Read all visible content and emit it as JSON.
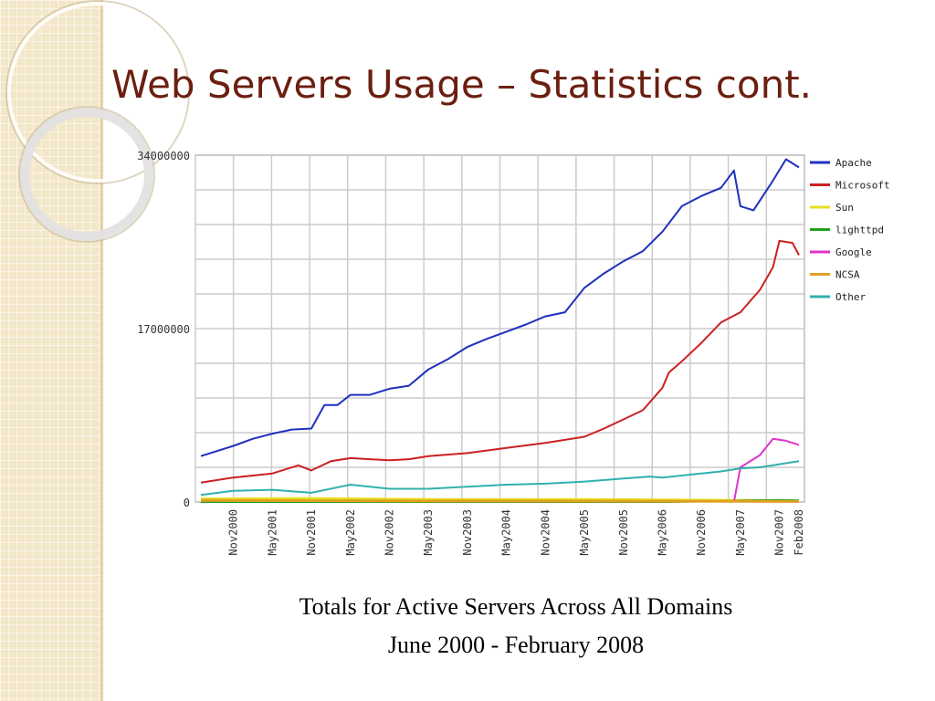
{
  "slide": {
    "title": "Web Servers Usage – Statistics cont."
  },
  "caption": {
    "line1": "Totals for Active Servers Across All Domains",
    "line2": "June 2000 - February 2008"
  },
  "colors": {
    "title": "#6b1f10",
    "plot_background": "#ffffff",
    "gridlines": "#cccccc",
    "strip_background": "#f3e7c9"
  },
  "chart_data": {
    "type": "line",
    "title": "",
    "xlabel": "",
    "ylabel": "",
    "ylim": [
      0,
      34000000
    ],
    "y_ticks": [
      "0",
      "17000000",
      "34000000"
    ],
    "x_tick_labels": [
      "Nov2000",
      "May2001",
      "Nov2001",
      "May2002",
      "Nov2002",
      "May2003",
      "Nov2003",
      "May2004",
      "Nov2004",
      "May2005",
      "Nov2005",
      "May2006",
      "Nov2006",
      "May2007",
      "Nov2007",
      "Feb2008"
    ],
    "grid": true,
    "legend_position": "right",
    "x_range": [
      "2000-06",
      "2008-02"
    ],
    "series": [
      {
        "name": "Apache",
        "color": "#1f2fbf",
        "points": [
          [
            "2000-06",
            4500000
          ],
          [
            "2000-11",
            5500000
          ],
          [
            "2001-02",
            6200000
          ],
          [
            "2001-05",
            6700000
          ],
          [
            "2001-08",
            7100000
          ],
          [
            "2001-11",
            7200000
          ],
          [
            "2002-01",
            9500000
          ],
          [
            "2002-03",
            9500000
          ],
          [
            "2002-05",
            10500000
          ],
          [
            "2002-08",
            10500000
          ],
          [
            "2002-11",
            11100000
          ],
          [
            "2003-02",
            11400000
          ],
          [
            "2003-05",
            13000000
          ],
          [
            "2003-08",
            14000000
          ],
          [
            "2003-11",
            15200000
          ],
          [
            "2004-02",
            16000000
          ],
          [
            "2004-05",
            16700000
          ],
          [
            "2004-08",
            17400000
          ],
          [
            "2004-11",
            18200000
          ],
          [
            "2005-02",
            18600000
          ],
          [
            "2005-05",
            21000000
          ],
          [
            "2005-08",
            22400000
          ],
          [
            "2005-11",
            23600000
          ],
          [
            "2006-02",
            24600000
          ],
          [
            "2006-05",
            26500000
          ],
          [
            "2006-08",
            29000000
          ],
          [
            "2006-11",
            30000000
          ],
          [
            "2007-02",
            30800000
          ],
          [
            "2007-04",
            32500000
          ],
          [
            "2007-05",
            29000000
          ],
          [
            "2007-07",
            28600000
          ],
          [
            "2007-10",
            31500000
          ],
          [
            "2007-12",
            33600000
          ],
          [
            "2008-02",
            32800000
          ]
        ]
      },
      {
        "name": "Microsoft",
        "color": "#cc2020",
        "points": [
          [
            "2000-06",
            1900000
          ],
          [
            "2000-11",
            2400000
          ],
          [
            "2001-05",
            2800000
          ],
          [
            "2001-09",
            3600000
          ],
          [
            "2001-11",
            3100000
          ],
          [
            "2002-02",
            4000000
          ],
          [
            "2002-05",
            4300000
          ],
          [
            "2002-08",
            4200000
          ],
          [
            "2002-11",
            4100000
          ],
          [
            "2003-02",
            4200000
          ],
          [
            "2003-05",
            4500000
          ],
          [
            "2003-11",
            4800000
          ],
          [
            "2004-05",
            5300000
          ],
          [
            "2004-11",
            5800000
          ],
          [
            "2005-05",
            6400000
          ],
          [
            "2005-08",
            7200000
          ],
          [
            "2005-11",
            8100000
          ],
          [
            "2006-02",
            9000000
          ],
          [
            "2006-05",
            11200000
          ],
          [
            "2006-06",
            12700000
          ],
          [
            "2006-08",
            13800000
          ],
          [
            "2006-11",
            15600000
          ],
          [
            "2007-02",
            17600000
          ],
          [
            "2007-05",
            18600000
          ],
          [
            "2007-08",
            20800000
          ],
          [
            "2007-10",
            23000000
          ],
          [
            "2007-11",
            25600000
          ],
          [
            "2008-01",
            25400000
          ],
          [
            "2008-02",
            24200000
          ]
        ]
      },
      {
        "name": "Sun",
        "color": "#e8e020",
        "points": [
          [
            "2000-06",
            300000
          ],
          [
            "2001-11",
            350000
          ],
          [
            "2002-06",
            300000
          ],
          [
            "2003-06",
            250000
          ],
          [
            "2004-06",
            250000
          ],
          [
            "2005-06",
            250000
          ],
          [
            "2006-06",
            200000
          ],
          [
            "2007-06",
            150000
          ],
          [
            "2008-02",
            100000
          ]
        ]
      },
      {
        "name": "lighttpd",
        "color": "#20a020",
        "points": [
          [
            "2000-06",
            0
          ],
          [
            "2006-06",
            0
          ],
          [
            "2006-11",
            50000
          ],
          [
            "2007-06",
            150000
          ],
          [
            "2007-11",
            200000
          ],
          [
            "2008-02",
            150000
          ]
        ]
      },
      {
        "name": "Google",
        "color": "#dd33cc",
        "points": [
          [
            "2007-04",
            0
          ],
          [
            "2007-05",
            3400000
          ],
          [
            "2007-08",
            4600000
          ],
          [
            "2007-10",
            6200000
          ],
          [
            "2007-12",
            6000000
          ],
          [
            "2008-02",
            5600000
          ]
        ]
      },
      {
        "name": "NCSA",
        "color": "#e0a020",
        "points": [
          [
            "2000-06",
            150000
          ],
          [
            "2003-06",
            100000
          ],
          [
            "2006-06",
            80000
          ],
          [
            "2008-02",
            50000
          ]
        ]
      },
      {
        "name": "Other",
        "color": "#30b0b0",
        "points": [
          [
            "2000-06",
            700000
          ],
          [
            "2000-11",
            1100000
          ],
          [
            "2001-05",
            1200000
          ],
          [
            "2001-11",
            900000
          ],
          [
            "2002-05",
            1700000
          ],
          [
            "2002-11",
            1300000
          ],
          [
            "2003-05",
            1300000
          ],
          [
            "2003-11",
            1500000
          ],
          [
            "2004-05",
            1700000
          ],
          [
            "2004-11",
            1800000
          ],
          [
            "2005-05",
            2000000
          ],
          [
            "2005-11",
            2300000
          ],
          [
            "2006-03",
            2500000
          ],
          [
            "2006-05",
            2400000
          ],
          [
            "2006-11",
            2800000
          ],
          [
            "2007-02",
            3000000
          ],
          [
            "2007-05",
            3300000
          ],
          [
            "2007-08",
            3400000
          ],
          [
            "2007-11",
            3700000
          ],
          [
            "2008-02",
            4000000
          ]
        ]
      }
    ]
  }
}
